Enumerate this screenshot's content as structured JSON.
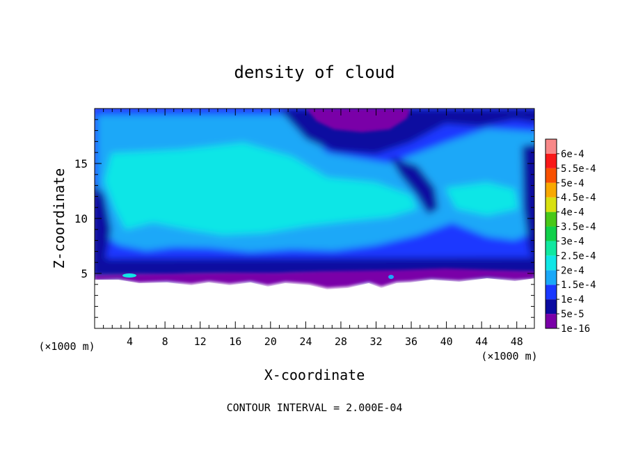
{
  "chart_data": {
    "type": "heatmap",
    "title": "density of cloud",
    "xlabel": "X-coordinate",
    "ylabel": "Z-coordinate",
    "x_unit_label": "(×1000 m)",
    "z_unit_label": "(×1000 m)",
    "footer": "CONTOUR INTERVAL = 2.000E-04",
    "xlim": [
      0,
      50
    ],
    "ylim": [
      0,
      20
    ],
    "xticks": [
      4,
      8,
      12,
      16,
      20,
      24,
      28,
      32,
      36,
      40,
      44,
      48
    ],
    "yticks": [
      5,
      10,
      15
    ],
    "grid": false,
    "legend": "right colorbar",
    "colorbar": [
      {
        "label": "1e-16",
        "color": "#7a00a8"
      },
      {
        "label": "5e-5",
        "color": "#0a0aa0"
      },
      {
        "label": "1e-4",
        "color": "#1a38ff"
      },
      {
        "label": "1.5e-4",
        "color": "#1aa8f8"
      },
      {
        "label": "2e-4",
        "color": "#10e6e6"
      },
      {
        "label": "2.5e-4",
        "color": "#10e8a0"
      },
      {
        "label": "3e-4",
        "color": "#10d04a"
      },
      {
        "label": "3.5e-4",
        "color": "#48c818"
      },
      {
        "label": "4e-4",
        "color": "#d8e010"
      },
      {
        "label": "4.5e-4",
        "color": "#f8a800"
      },
      {
        "label": "5e-4",
        "color": "#f85000"
      },
      {
        "label": "5.5e-4",
        "color": "#f81818"
      },
      {
        "label": "6e-4",
        "color": "#f88888"
      }
    ]
  }
}
